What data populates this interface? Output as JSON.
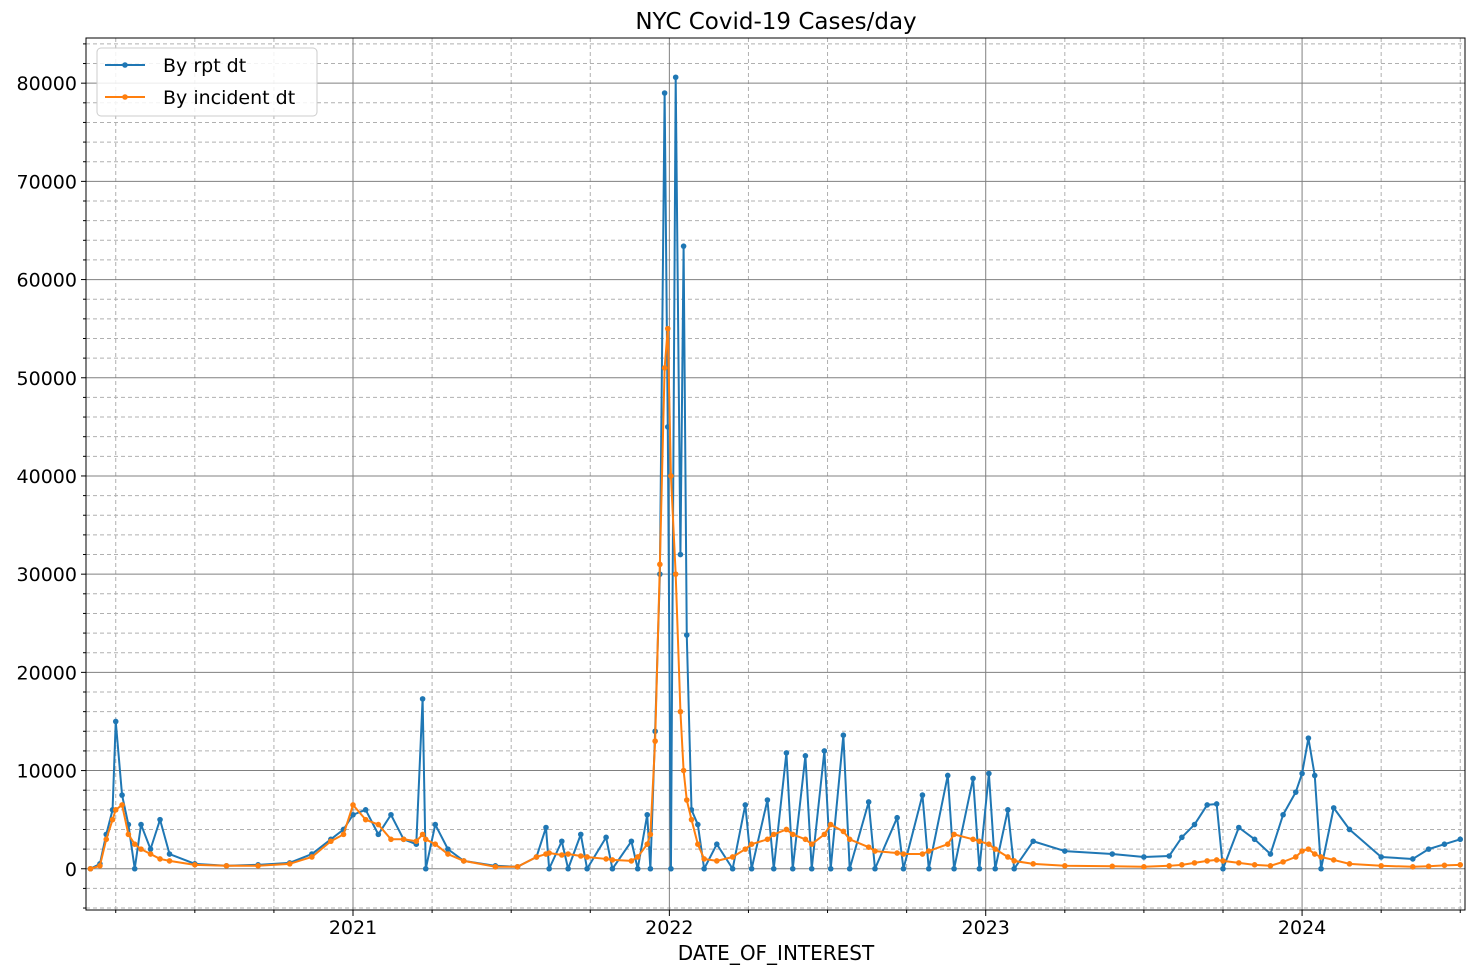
{
  "chart_data": {
    "type": "line",
    "title": "NYC Covid-19 Cases/day",
    "x_label": "DATE_OF_INTEREST",
    "x": [
      2020.17,
      2020.2,
      2020.22,
      2020.24,
      2020.25,
      2020.27,
      2020.29,
      2020.31,
      2020.33,
      2020.36,
      2020.39,
      2020.42,
      2020.5,
      2020.6,
      2020.7,
      2020.8,
      2020.87,
      2020.93,
      2020.97,
      2021.0,
      2021.04,
      2021.08,
      2021.12,
      2021.16,
      2021.2,
      2021.22,
      2021.23,
      2021.26,
      2021.3,
      2021.35,
      2021.45,
      2021.52,
      2021.58,
      2021.61,
      2021.62,
      2021.66,
      2021.68,
      2021.72,
      2021.74,
      2021.8,
      2021.82,
      2021.88,
      2021.9,
      2021.93,
      2021.94,
      2021.955,
      2021.97,
      2021.985,
      2021.995,
      2022.005,
      2022.02,
      2022.035,
      2022.045,
      2022.055,
      2022.07,
      2022.09,
      2022.11,
      2022.15,
      2022.2,
      2022.24,
      2022.26,
      2022.31,
      2022.33,
      2022.37,
      2022.39,
      2022.43,
      2022.45,
      2022.49,
      2022.51,
      2022.55,
      2022.57,
      2022.63,
      2022.65,
      2022.72,
      2022.74,
      2022.8,
      2022.82,
      2022.88,
      2022.9,
      2022.96,
      2022.98,
      2023.01,
      2023.03,
      2023.07,
      2023.09,
      2023.15,
      2023.25,
      2023.4,
      2023.5,
      2023.58,
      2023.62,
      2023.66,
      2023.7,
      2023.73,
      2023.75,
      2023.8,
      2023.85,
      2023.9,
      2023.94,
      2023.98,
      2024.0,
      2024.02,
      2024.04,
      2024.06,
      2024.1,
      2024.15,
      2024.25,
      2024.35,
      2024.4,
      2024.45,
      2024.5
    ],
    "series": [
      {
        "name": "By rpt dt",
        "color": "#1f77b4",
        "values": [
          0,
          500,
          3500,
          6000,
          15000,
          7500,
          4500,
          0,
          4500,
          2000,
          5000,
          1500,
          500,
          300,
          400,
          600,
          1500,
          3000,
          4000,
          5500,
          6000,
          3500,
          5500,
          3000,
          2500,
          17300,
          0,
          4500,
          2000,
          800,
          300,
          200,
          1200,
          4200,
          0,
          2800,
          0,
          3500,
          0,
          3200,
          0,
          2800,
          0,
          5500,
          0,
          14000,
          30000,
          79000,
          45000,
          0,
          80600,
          32000,
          63400,
          23800,
          6000,
          4500,
          0,
          2500,
          0,
          6500,
          0,
          7000,
          0,
          11800,
          0,
          11500,
          0,
          12000,
          0,
          13600,
          0,
          6800,
          0,
          5200,
          0,
          7500,
          0,
          9500,
          0,
          9200,
          0,
          9700,
          0,
          6000,
          0,
          2800,
          1800,
          1500,
          1200,
          1300,
          3200,
          4500,
          6500,
          6600,
          0,
          4200,
          3000,
          1500,
          5500,
          7800,
          9700,
          13300,
          9500,
          0,
          6200,
          4000,
          1200,
          1000,
          2000,
          2500,
          3000
        ]
      },
      {
        "name": "By incident dt",
        "color": "#ff7f0e",
        "values": [
          0,
          300,
          3000,
          5000,
          6000,
          6500,
          3500,
          2500,
          2000,
          1500,
          1000,
          800,
          400,
          300,
          300,
          500,
          1200,
          2800,
          3500,
          6500,
          5000,
          4500,
          3000,
          3000,
          2800,
          3500,
          3000,
          2500,
          1500,
          800,
          200,
          200,
          1200,
          1500,
          1600,
          1400,
          1500,
          1300,
          1200,
          1000,
          900,
          800,
          1200,
          2500,
          3500,
          13000,
          31000,
          51000,
          55000,
          40000,
          30000,
          16000,
          10000,
          7000,
          5000,
          2500,
          1000,
          800,
          1200,
          2000,
          2500,
          3000,
          3500,
          4000,
          3500,
          3000,
          2500,
          3500,
          4500,
          3800,
          3000,
          2200,
          1800,
          1600,
          1500,
          1500,
          1800,
          2500,
          3500,
          3000,
          2800,
          2500,
          2000,
          1200,
          800,
          500,
          300,
          250,
          200,
          300,
          400,
          600,
          800,
          900,
          800,
          600,
          400,
          300,
          700,
          1200,
          1800,
          2000,
          1500,
          1200,
          900,
          500,
          300,
          200,
          250,
          350,
          400
        ]
      }
    ],
    "xlim": [
      2020.156,
      2024.515
    ],
    "xticks": [
      2021,
      2022,
      2023,
      2024
    ],
    "x_minor_ticks": [
      2020.25,
      2020.5,
      2020.75,
      2021.25,
      2021.5,
      2021.75,
      2022.25,
      2022.5,
      2022.75,
      2023.25,
      2023.5,
      2023.75,
      2024.25,
      2024.5
    ],
    "ylim": [
      -4200,
      84600
    ],
    "yticks": [
      0,
      10000,
      20000,
      30000,
      40000,
      50000,
      60000,
      70000,
      80000
    ],
    "y_minor_ticks": [
      -4000,
      -2000,
      2000,
      4000,
      6000,
      8000,
      12000,
      14000,
      16000,
      18000,
      22000,
      24000,
      26000,
      28000,
      32000,
      34000,
      36000,
      38000,
      42000,
      44000,
      46000,
      48000,
      52000,
      54000,
      56000,
      58000,
      62000,
      64000,
      66000,
      68000,
      72000,
      74000,
      76000,
      78000,
      82000,
      84000
    ],
    "grid": true,
    "legend": "upper-left"
  }
}
